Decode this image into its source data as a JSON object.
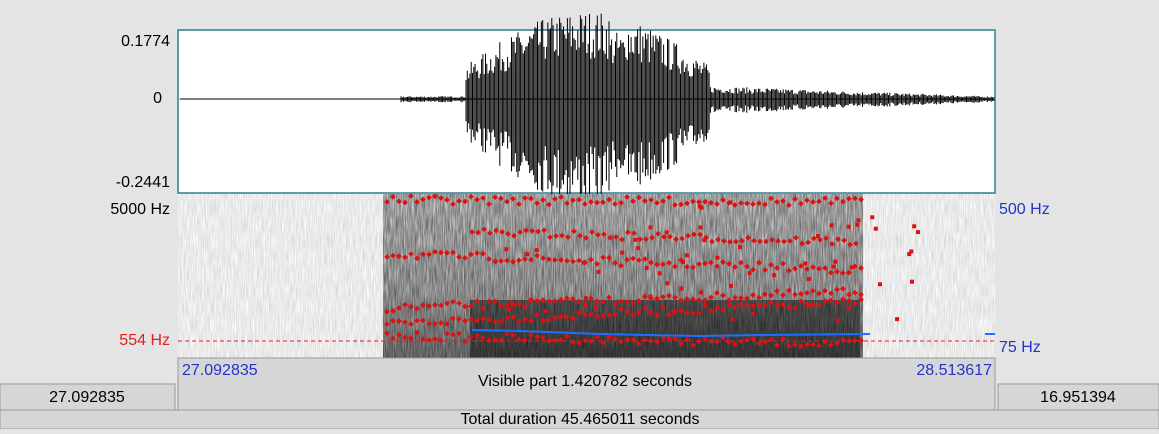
{
  "waveform": {
    "y_max": "0.1774",
    "y_zero": "0",
    "y_min": "-0.2441"
  },
  "spectrogram": {
    "freq_max": "5000 Hz",
    "cursor_freq": "554 Hz",
    "pitch_max": "500 Hz",
    "pitch_min": "75 Hz"
  },
  "time_bar": {
    "window_start": "27.092835",
    "visible_start": "27.092835",
    "visible_part": "Visible part 1.420782 seconds",
    "visible_end": "28.513617",
    "window_remaining": "16.951394",
    "total_duration": "Total duration 45.465011 seconds"
  }
}
